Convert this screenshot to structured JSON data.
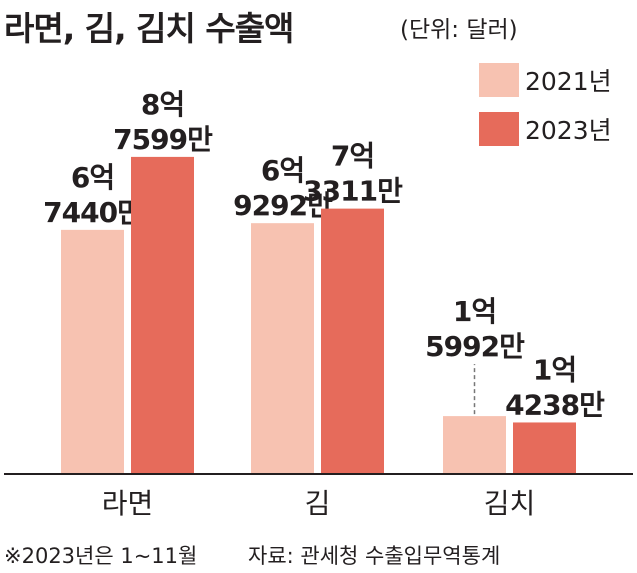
{
  "header": {
    "title": "라면, 김, 김치 수출액",
    "unit": "(단위: 달러)"
  },
  "colors": {
    "2021": "#f7c2b1",
    "2023": "#e66b5b",
    "axis": "#231f20",
    "leader": "#777777"
  },
  "chart_data": {
    "type": "bar",
    "title": "라면, 김, 김치 수출액",
    "unit_label": "(단위: 달러)",
    "categories": [
      "라면",
      "김",
      "김치"
    ],
    "series": [
      {
        "name": "2021년",
        "values": [
          674400000,
          692920000,
          159920000
        ],
        "labels": [
          [
            "6억",
            "7440만"
          ],
          [
            "6억",
            "9292만"
          ],
          [
            "1억",
            "5992만"
          ]
        ]
      },
      {
        "name": "2023년",
        "values": [
          875990000,
          733110000,
          142380000
        ],
        "labels": [
          [
            "8억",
            "7599만"
          ],
          [
            "7억",
            "3311만"
          ],
          [
            "1억",
            "4238만"
          ]
        ]
      }
    ],
    "ylim": [
      0,
      1000000000
    ],
    "grid": false,
    "legend_position": "top-right"
  },
  "footer": {
    "note": "※2023년은 1~11월",
    "source": "자료: 관세청 수출입무역통계"
  }
}
